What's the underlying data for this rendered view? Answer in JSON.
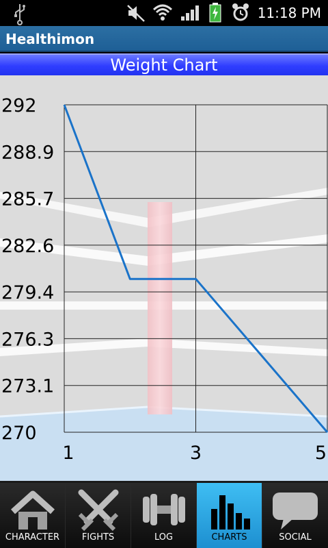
{
  "status_bar": {
    "time": "11:18 PM",
    "icons": [
      "usb-icon",
      "mute-icon",
      "wifi-icon",
      "signal-icon",
      "battery-charging-icon",
      "alarm-icon"
    ]
  },
  "app": {
    "title": "Healthimon"
  },
  "chart_header": {
    "title": "Weight Chart"
  },
  "chart_data": {
    "type": "line",
    "title": "Weight Chart",
    "x": [
      1,
      2,
      3,
      5
    ],
    "y": [
      292,
      280.3,
      280.3,
      270
    ],
    "xticks": [
      "1",
      "3",
      "5"
    ],
    "yticks": [
      "292",
      "288.9",
      "285.7",
      "282.6",
      "279.4",
      "276.3",
      "273.1",
      "270"
    ],
    "xlim": [
      1,
      5
    ],
    "ylim": [
      270,
      292
    ],
    "grid": true,
    "line_color": "#1a73c9"
  },
  "nav": {
    "tabs": [
      {
        "label": "CHARACTER",
        "icon": "house-icon",
        "active": false
      },
      {
        "label": "FIGHTS",
        "icon": "crossed-swords-icon",
        "active": false
      },
      {
        "label": "LOG",
        "icon": "dumbbell-icon",
        "active": false
      },
      {
        "label": "CHARTS",
        "icon": "bar-chart-icon",
        "active": true
      },
      {
        "label": "SOCIAL",
        "icon": "speech-bubble-icon",
        "active": false
      }
    ]
  },
  "colors": {
    "title_bar": "#1e5f96",
    "chart_header": "#2f3dff",
    "active_tab": "#2aa4e3",
    "line": "#1a73c9"
  }
}
